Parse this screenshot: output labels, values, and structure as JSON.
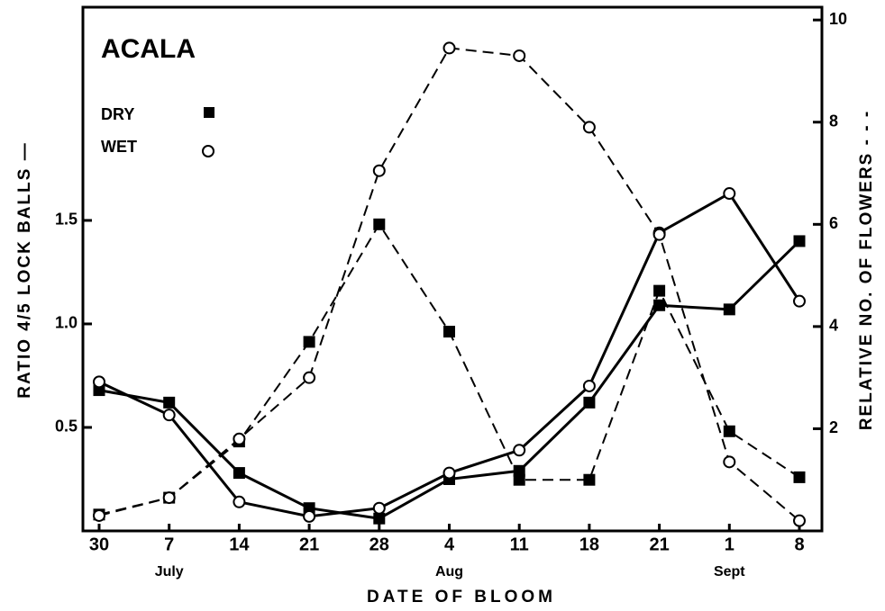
{
  "chart_data": {
    "type": "line",
    "title": "ACALA",
    "x_label": "DATE OF BLOOM",
    "y_label": "RATIO 4/5 LOCK BALLS —",
    "y2_label": "RELATIVE NO. OF FLOWERS - - -",
    "categories": [
      "30",
      "7",
      "14",
      "21",
      "28",
      "4",
      "11",
      "18",
      "21",
      "1",
      "8"
    ],
    "month_labels": [
      null,
      "July",
      null,
      null,
      null,
      "Aug",
      null,
      null,
      null,
      "Sept",
      null
    ],
    "ylim": [
      0,
      2.53
    ],
    "yticks": [
      0.5,
      {
        "value": 1.0,
        "label": "1.0"
      },
      1.5
    ],
    "y2lim": [
      0,
      10.25
    ],
    "y2ticks": [
      2,
      4,
      6,
      8,
      10
    ],
    "series": [
      {
        "name": "DRY",
        "color": "#000000",
        "marker": "square",
        "values": [
          0.68,
          0.62,
          0.28,
          0.11,
          0.06,
          0.25,
          0.29,
          0.62,
          1.09,
          1.07,
          1.4
        ]
      },
      {
        "name": "WET",
        "color": "#000000",
        "marker": "circle",
        "values": [
          0.72,
          0.56,
          0.14,
          0.07,
          0.11,
          0.28,
          0.39,
          0.7,
          1.44,
          1.63,
          1.11
        ]
      },
      {
        "name": "DRY",
        "color": "#000000",
        "marker": "square",
        "axis": "y2",
        "dashed": true,
        "values": [
          0.32,
          0.65,
          1.75,
          3.7,
          6.0,
          3.9,
          1.0,
          1.0,
          4.7,
          1.95,
          1.05
        ]
      },
      {
        "name": "WET",
        "color": "#000000",
        "marker": "circle",
        "axis": "y2",
        "dashed": true,
        "values": [
          0.3,
          0.65,
          1.8,
          3.0,
          7.05,
          9.45,
          9.3,
          7.9,
          5.8,
          1.35,
          0.2
        ]
      }
    ]
  }
}
